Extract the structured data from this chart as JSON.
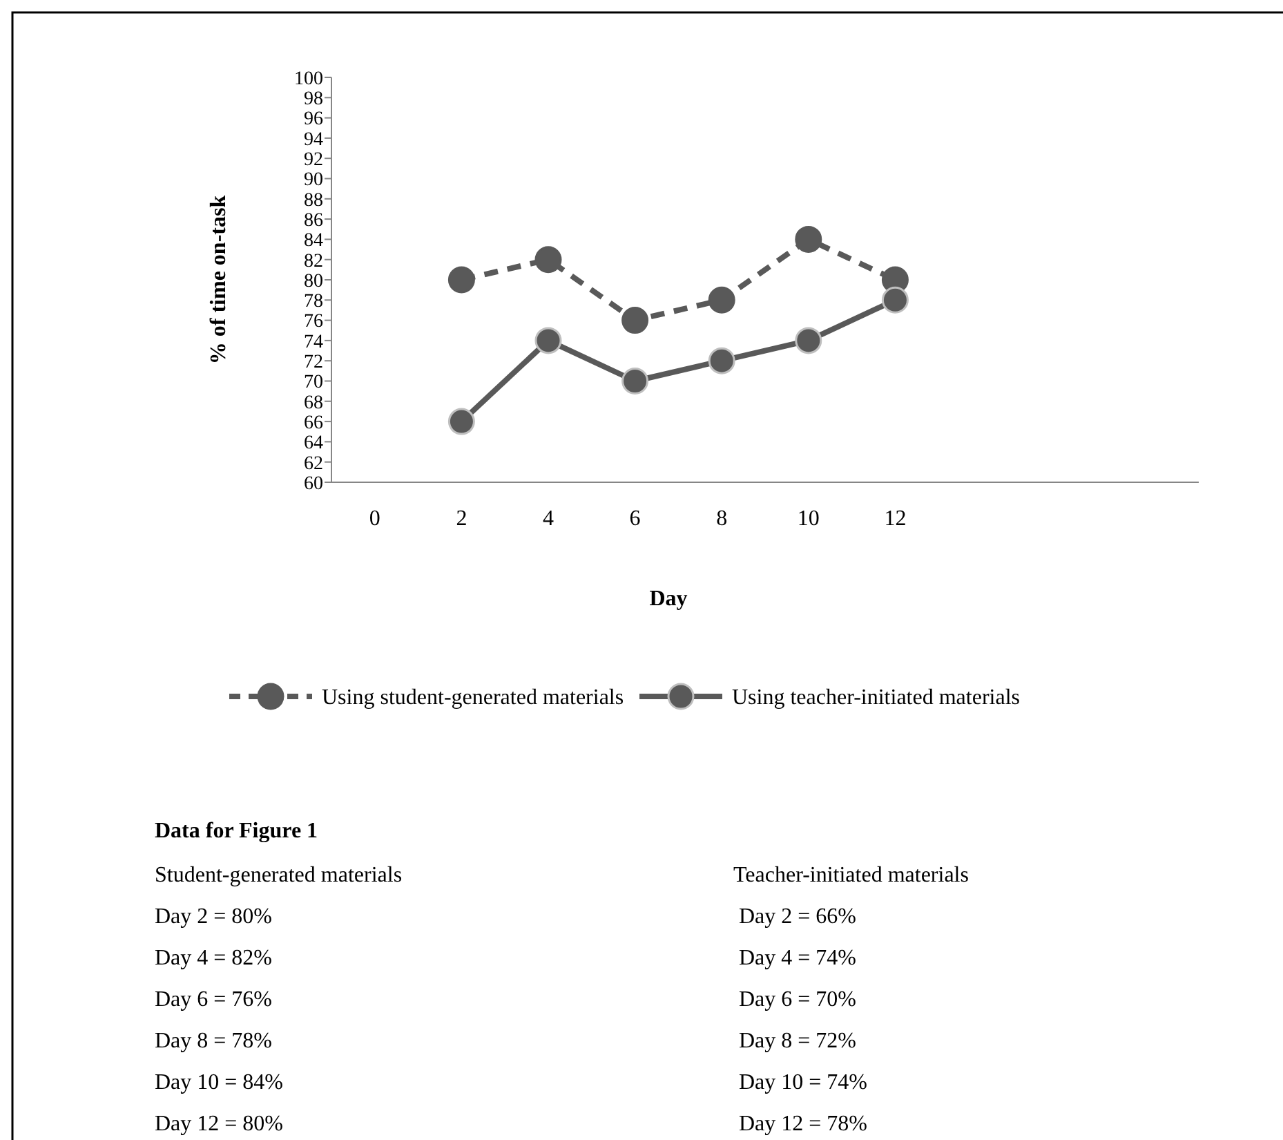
{
  "chart_data": {
    "type": "line",
    "xlabel": "Day",
    "ylabel": "% of time on-task",
    "categories": [
      "0",
      "2",
      "4",
      "6",
      "8",
      "10",
      "12",
      null,
      null,
      null
    ],
    "ylim": [
      60,
      100
    ],
    "yticks": [
      60,
      62,
      64,
      66,
      68,
      70,
      72,
      74,
      76,
      78,
      80,
      82,
      84,
      86,
      88,
      90,
      92,
      94,
      96,
      98,
      100
    ],
    "grid": false,
    "legend": "bottom",
    "marker": "circle",
    "series": [
      {
        "name": "Using student-generated materials",
        "color": "#595959",
        "line_style": "dashed",
        "values": [
          null,
          80,
          82,
          76,
          78,
          84,
          80,
          null,
          null,
          null
        ]
      },
      {
        "name": "Using teacher-initiated materials",
        "color": "#595959",
        "line_style": "solid",
        "values": [
          null,
          66,
          74,
          70,
          72,
          74,
          78,
          null,
          null,
          null
        ]
      }
    ],
    "annotations": [
      "Data for Figure 1",
      "Student-generated materials",
      "Day 2 = 80%",
      "Day 4 = 82%",
      "Day 6 = 76%",
      "Day 8 = 78%",
      "Day 10 = 84%",
      "Day 12 = 80%",
      "Teacher-initiated materials",
      "Day 2 = 66%",
      "Day 4 = 74%",
      "Day 6 = 70%",
      "Day 8 = 72%",
      "Day 10 = 74%",
      "Day 12 = 78%"
    ]
  }
}
